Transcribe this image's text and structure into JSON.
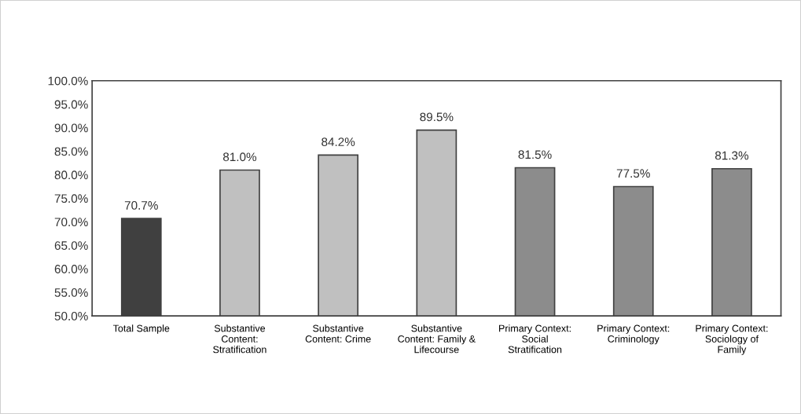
{
  "chart_data": {
    "type": "bar",
    "categories": [
      "Total Sample",
      "Substantive\nContent:\nStratification",
      "Substantive\nContent: Crime",
      "Substantive\nContent: Family &\nLifecourse",
      "Primary Context:\nSocial\nStratification",
      "Primary Context:\nCriminology",
      "Primary Context:\nSociology of\nFamily"
    ],
    "values": [
      70.7,
      81.0,
      84.2,
      89.5,
      81.5,
      77.5,
      81.3
    ],
    "colors": [
      "#404040",
      "#c0c0c0",
      "#c0c0c0",
      "#c0c0c0",
      "#8c8c8c",
      "#8c8c8c",
      "#8c8c8c"
    ],
    "value_labels": [
      "70.7%",
      "81.0%",
      "84.2%",
      "89.5%",
      "81.5%",
      "77.5%",
      "81.3%"
    ],
    "ylim": [
      50,
      100
    ],
    "yticks": [
      {
        "value": 50,
        "label": "50.0%"
      },
      {
        "value": 55,
        "label": "55.0%"
      },
      {
        "value": 60,
        "label": "60.0%"
      },
      {
        "value": 65,
        "label": "65.0%"
      },
      {
        "value": 70,
        "label": "70.0%"
      },
      {
        "value": 75,
        "label": "75.0%"
      },
      {
        "value": 80,
        "label": "80.0%"
      },
      {
        "value": 85,
        "label": "85.0%"
      },
      {
        "value": 90,
        "label": "90.0%"
      },
      {
        "value": 95,
        "label": "95.0%"
      },
      {
        "value": 100,
        "label": "100.0%"
      }
    ],
    "grid": false,
    "legend": false
  }
}
